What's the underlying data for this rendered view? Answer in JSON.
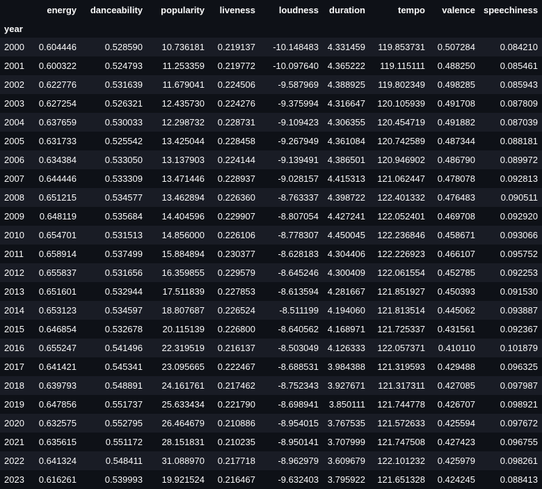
{
  "table": {
    "index_name": "year",
    "columns": [
      "energy",
      "danceability",
      "popularity",
      "liveness",
      "loudness",
      "duration",
      "tempo",
      "valence",
      "speechiness"
    ],
    "rows": [
      {
        "year": "2000",
        "values": [
          "0.604446",
          "0.528590",
          "10.736181",
          "0.219137",
          "-10.148483",
          "4.331459",
          "119.853731",
          "0.507284",
          "0.084210"
        ]
      },
      {
        "year": "2001",
        "values": [
          "0.600322",
          "0.524793",
          "11.253359",
          "0.219772",
          "-10.097640",
          "4.365222",
          "119.115111",
          "0.488250",
          "0.085461"
        ]
      },
      {
        "year": "2002",
        "values": [
          "0.622776",
          "0.531639",
          "11.679041",
          "0.224506",
          "-9.587969",
          "4.388925",
          "119.802349",
          "0.498285",
          "0.085943"
        ]
      },
      {
        "year": "2003",
        "values": [
          "0.627254",
          "0.526321",
          "12.435730",
          "0.224276",
          "-9.375994",
          "4.316647",
          "120.105939",
          "0.491708",
          "0.087809"
        ]
      },
      {
        "year": "2004",
        "values": [
          "0.637659",
          "0.530033",
          "12.298732",
          "0.228731",
          "-9.109423",
          "4.306355",
          "120.454719",
          "0.491882",
          "0.087039"
        ]
      },
      {
        "year": "2005",
        "values": [
          "0.631733",
          "0.525542",
          "13.425044",
          "0.228458",
          "-9.267949",
          "4.361084",
          "120.742589",
          "0.487344",
          "0.088181"
        ]
      },
      {
        "year": "2006",
        "values": [
          "0.634384",
          "0.533050",
          "13.137903",
          "0.224144",
          "-9.139491",
          "4.386501",
          "120.946902",
          "0.486790",
          "0.089972"
        ]
      },
      {
        "year": "2007",
        "values": [
          "0.644446",
          "0.533309",
          "13.471446",
          "0.228937",
          "-9.028157",
          "4.415313",
          "121.062447",
          "0.478078",
          "0.092813"
        ]
      },
      {
        "year": "2008",
        "values": [
          "0.651215",
          "0.534577",
          "13.462894",
          "0.226360",
          "-8.763337",
          "4.398722",
          "122.401332",
          "0.476483",
          "0.090511"
        ]
      },
      {
        "year": "2009",
        "values": [
          "0.648119",
          "0.535684",
          "14.404596",
          "0.229907",
          "-8.807054",
          "4.427241",
          "122.052401",
          "0.469708",
          "0.092920"
        ]
      },
      {
        "year": "2010",
        "values": [
          "0.654701",
          "0.531513",
          "14.856000",
          "0.226106",
          "-8.778307",
          "4.450045",
          "122.236846",
          "0.458671",
          "0.093066"
        ]
      },
      {
        "year": "2011",
        "values": [
          "0.658914",
          "0.537499",
          "15.884894",
          "0.230377",
          "-8.628183",
          "4.304406",
          "122.226923",
          "0.466107",
          "0.095752"
        ]
      },
      {
        "year": "2012",
        "values": [
          "0.655837",
          "0.531656",
          "16.359855",
          "0.229579",
          "-8.645246",
          "4.300409",
          "122.061554",
          "0.452785",
          "0.092253"
        ]
      },
      {
        "year": "2013",
        "values": [
          "0.651601",
          "0.532944",
          "17.511839",
          "0.227853",
          "-8.613594",
          "4.281667",
          "121.851927",
          "0.450393",
          "0.091530"
        ]
      },
      {
        "year": "2014",
        "values": [
          "0.653123",
          "0.534597",
          "18.807687",
          "0.226524",
          "-8.511199",
          "4.194060",
          "121.813514",
          "0.445062",
          "0.093887"
        ]
      },
      {
        "year": "2015",
        "values": [
          "0.646854",
          "0.532678",
          "20.115139",
          "0.226800",
          "-8.640562",
          "4.168971",
          "121.725337",
          "0.431561",
          "0.092367"
        ]
      },
      {
        "year": "2016",
        "values": [
          "0.655247",
          "0.541496",
          "22.319519",
          "0.216137",
          "-8.503049",
          "4.126333",
          "122.057371",
          "0.410110",
          "0.101879"
        ]
      },
      {
        "year": "2017",
        "values": [
          "0.641421",
          "0.545341",
          "23.095665",
          "0.222467",
          "-8.688531",
          "3.984388",
          "121.319593",
          "0.429488",
          "0.096325"
        ]
      },
      {
        "year": "2018",
        "values": [
          "0.639793",
          "0.548891",
          "24.161761",
          "0.217462",
          "-8.752343",
          "3.927671",
          "121.317311",
          "0.427085",
          "0.097987"
        ]
      },
      {
        "year": "2019",
        "values": [
          "0.647856",
          "0.551737",
          "25.633434",
          "0.221790",
          "-8.698941",
          "3.850111",
          "121.744778",
          "0.426707",
          "0.098921"
        ]
      },
      {
        "year": "2020",
        "values": [
          "0.632575",
          "0.552795",
          "26.464679",
          "0.210886",
          "-8.954015",
          "3.767535",
          "121.572633",
          "0.425594",
          "0.097672"
        ]
      },
      {
        "year": "2021",
        "values": [
          "0.635615",
          "0.551172",
          "28.151831",
          "0.210235",
          "-8.950141",
          "3.707999",
          "121.747508",
          "0.427423",
          "0.096755"
        ]
      },
      {
        "year": "2022",
        "values": [
          "0.641324",
          "0.548411",
          "31.088970",
          "0.217718",
          "-8.962979",
          "3.609679",
          "122.101232",
          "0.425979",
          "0.098261"
        ]
      },
      {
        "year": "2023",
        "values": [
          "0.616261",
          "0.539993",
          "19.921524",
          "0.216467",
          "-9.632403",
          "3.795922",
          "121.651328",
          "0.424245",
          "0.088413"
        ]
      }
    ]
  },
  "colors": {
    "background": "#0e1117",
    "row_stripe": "#191c25",
    "text": "#fafafa"
  }
}
